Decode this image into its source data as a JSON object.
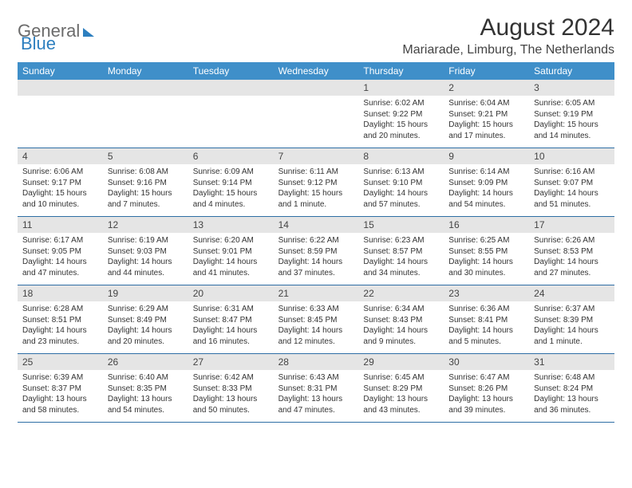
{
  "brand": {
    "general": "General",
    "blue": "Blue"
  },
  "title": {
    "month_year": "August 2024",
    "location": "Mariarade, Limburg, The Netherlands"
  },
  "day_headers": [
    "Sunday",
    "Monday",
    "Tuesday",
    "Wednesday",
    "Thursday",
    "Friday",
    "Saturday"
  ],
  "colors": {
    "header_bg": "#3f8fc9",
    "header_text": "#ffffff",
    "day_label_bg": "#e5e5e5",
    "week_border": "#2e6ea5",
    "logo_gray": "#6b6b6b",
    "logo_blue": "#2d7fbf"
  },
  "weeks": [
    {
      "nums": [
        "",
        "",
        "",
        "",
        "1",
        "2",
        "3"
      ],
      "cells": [
        "",
        "",
        "",
        "",
        "Sunrise: 6:02 AM\nSunset: 9:22 PM\nDaylight: 15 hours and 20 minutes.",
        "Sunrise: 6:04 AM\nSunset: 9:21 PM\nDaylight: 15 hours and 17 minutes.",
        "Sunrise: 6:05 AM\nSunset: 9:19 PM\nDaylight: 15 hours and 14 minutes."
      ]
    },
    {
      "nums": [
        "4",
        "5",
        "6",
        "7",
        "8",
        "9",
        "10"
      ],
      "cells": [
        "Sunrise: 6:06 AM\nSunset: 9:17 PM\nDaylight: 15 hours and 10 minutes.",
        "Sunrise: 6:08 AM\nSunset: 9:16 PM\nDaylight: 15 hours and 7 minutes.",
        "Sunrise: 6:09 AM\nSunset: 9:14 PM\nDaylight: 15 hours and 4 minutes.",
        "Sunrise: 6:11 AM\nSunset: 9:12 PM\nDaylight: 15 hours and 1 minute.",
        "Sunrise: 6:13 AM\nSunset: 9:10 PM\nDaylight: 14 hours and 57 minutes.",
        "Sunrise: 6:14 AM\nSunset: 9:09 PM\nDaylight: 14 hours and 54 minutes.",
        "Sunrise: 6:16 AM\nSunset: 9:07 PM\nDaylight: 14 hours and 51 minutes."
      ]
    },
    {
      "nums": [
        "11",
        "12",
        "13",
        "14",
        "15",
        "16",
        "17"
      ],
      "cells": [
        "Sunrise: 6:17 AM\nSunset: 9:05 PM\nDaylight: 14 hours and 47 minutes.",
        "Sunrise: 6:19 AM\nSunset: 9:03 PM\nDaylight: 14 hours and 44 minutes.",
        "Sunrise: 6:20 AM\nSunset: 9:01 PM\nDaylight: 14 hours and 41 minutes.",
        "Sunrise: 6:22 AM\nSunset: 8:59 PM\nDaylight: 14 hours and 37 minutes.",
        "Sunrise: 6:23 AM\nSunset: 8:57 PM\nDaylight: 14 hours and 34 minutes.",
        "Sunrise: 6:25 AM\nSunset: 8:55 PM\nDaylight: 14 hours and 30 minutes.",
        "Sunrise: 6:26 AM\nSunset: 8:53 PM\nDaylight: 14 hours and 27 minutes."
      ]
    },
    {
      "nums": [
        "18",
        "19",
        "20",
        "21",
        "22",
        "23",
        "24"
      ],
      "cells": [
        "Sunrise: 6:28 AM\nSunset: 8:51 PM\nDaylight: 14 hours and 23 minutes.",
        "Sunrise: 6:29 AM\nSunset: 8:49 PM\nDaylight: 14 hours and 20 minutes.",
        "Sunrise: 6:31 AM\nSunset: 8:47 PM\nDaylight: 14 hours and 16 minutes.",
        "Sunrise: 6:33 AM\nSunset: 8:45 PM\nDaylight: 14 hours and 12 minutes.",
        "Sunrise: 6:34 AM\nSunset: 8:43 PM\nDaylight: 14 hours and 9 minutes.",
        "Sunrise: 6:36 AM\nSunset: 8:41 PM\nDaylight: 14 hours and 5 minutes.",
        "Sunrise: 6:37 AM\nSunset: 8:39 PM\nDaylight: 14 hours and 1 minute."
      ]
    },
    {
      "nums": [
        "25",
        "26",
        "27",
        "28",
        "29",
        "30",
        "31"
      ],
      "cells": [
        "Sunrise: 6:39 AM\nSunset: 8:37 PM\nDaylight: 13 hours and 58 minutes.",
        "Sunrise: 6:40 AM\nSunset: 8:35 PM\nDaylight: 13 hours and 54 minutes.",
        "Sunrise: 6:42 AM\nSunset: 8:33 PM\nDaylight: 13 hours and 50 minutes.",
        "Sunrise: 6:43 AM\nSunset: 8:31 PM\nDaylight: 13 hours and 47 minutes.",
        "Sunrise: 6:45 AM\nSunset: 8:29 PM\nDaylight: 13 hours and 43 minutes.",
        "Sunrise: 6:47 AM\nSunset: 8:26 PM\nDaylight: 13 hours and 39 minutes.",
        "Sunrise: 6:48 AM\nSunset: 8:24 PM\nDaylight: 13 hours and 36 minutes."
      ]
    }
  ]
}
